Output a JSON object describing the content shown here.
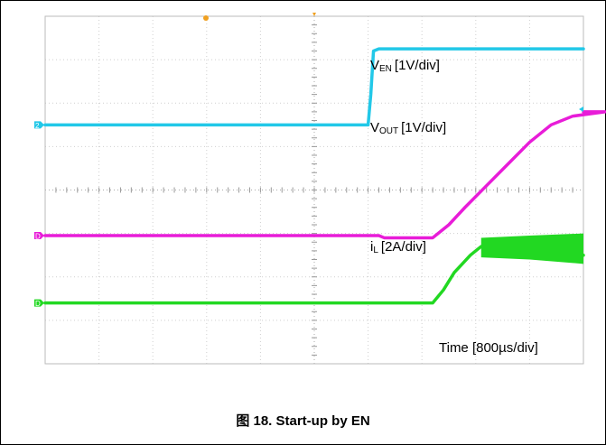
{
  "figure": {
    "caption": "图 18. Start-up by EN"
  },
  "chart_data": {
    "type": "line",
    "title": "",
    "xlabel": "Time [800µs/div]",
    "ylabel": "",
    "x_unit": "div",
    "x_range": [
      0,
      10
    ],
    "y_range": [
      -4,
      4
    ],
    "grid": true,
    "series": [
      {
        "name_main": "V",
        "name_sub": "EN",
        "name_scale": "[1V/div]",
        "color": "#22c8e8",
        "marker": "2",
        "points": [
          [
            0,
            1.5
          ],
          [
            6.0,
            1.5
          ],
          [
            6.05,
            2.2
          ],
          [
            6.1,
            3.2
          ],
          [
            6.2,
            3.25
          ],
          [
            10,
            3.25
          ]
        ]
      },
      {
        "name_main": "V",
        "name_sub": "OUT",
        "name_scale": "[1V/div]",
        "color": "#e81cd8",
        "marker": "D",
        "points": [
          [
            0,
            -1.05
          ],
          [
            6.2,
            -1.05
          ],
          [
            6.3,
            -1.1
          ],
          [
            7.2,
            -1.1
          ],
          [
            7.5,
            -0.8
          ],
          [
            7.8,
            -0.4
          ],
          [
            8.2,
            0.1
          ],
          [
            8.6,
            0.6
          ],
          [
            9.0,
            1.1
          ],
          [
            9.4,
            1.5
          ],
          [
            9.8,
            1.7
          ],
          [
            10.4,
            1.8
          ],
          [
            10,
            1.8
          ]
        ]
      },
      {
        "name_main": "i",
        "name_sub": "L",
        "name_scale": "[2A/div]",
        "color": "#22d822",
        "marker": "D",
        "points": [
          [
            0,
            -2.6
          ],
          [
            7.2,
            -2.6
          ],
          [
            7.4,
            -2.3
          ],
          [
            7.6,
            -1.9
          ],
          [
            7.9,
            -1.5
          ],
          [
            8.1,
            -1.3
          ],
          [
            10,
            -1.5
          ]
        ],
        "envelope": [
          [
            8.1,
            -1.1,
            -1.55
          ],
          [
            9.0,
            -1.05,
            -1.6
          ],
          [
            10,
            -1.0,
            -1.7
          ]
        ]
      }
    ]
  }
}
